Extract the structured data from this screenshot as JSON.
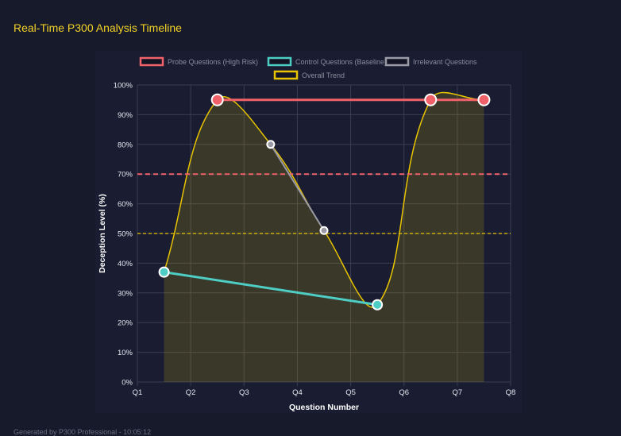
{
  "header": {
    "title": "Real-Time P300 Analysis Timeline"
  },
  "footer": {
    "text": "Generated by P300 Professional - 10:05:12"
  },
  "chart_data": {
    "type": "line",
    "xlabel": "Question Number",
    "ylabel": "Deception Level (%)",
    "xticks": [
      1,
      2,
      3,
      4,
      5,
      6,
      7,
      8
    ],
    "xtick_labels": [
      "Q1",
      "Q2",
      "Q3",
      "Q4",
      "Q5",
      "Q6",
      "Q7",
      "Q8"
    ],
    "xlim": [
      1,
      8
    ],
    "ylim": [
      0,
      100
    ],
    "yticks": [
      0,
      10,
      20,
      30,
      40,
      50,
      60,
      70,
      80,
      90,
      100
    ],
    "ytick_labels": [
      "0%",
      "10%",
      "20%",
      "30%",
      "40%",
      "50%",
      "60%",
      "70%",
      "80%",
      "90%",
      "100%"
    ],
    "grid": true,
    "legend_position": "top",
    "series": [
      {
        "name": "Probe Questions (High Risk)",
        "color": "#f0616a",
        "x": [
          2.5,
          6.5,
          7.5
        ],
        "y": [
          95,
          95,
          95
        ]
      },
      {
        "name": "Control Questions (Baseline)",
        "color": "#4ecdc4",
        "x": [
          1.5,
          5.5
        ],
        "y": [
          37,
          26
        ]
      },
      {
        "name": "Irrelevant Questions",
        "color": "#9a9aa6",
        "x": [
          3.5,
          4.5
        ],
        "y": [
          80,
          51
        ]
      },
      {
        "name": "Overall Trend",
        "color": "#e8c400",
        "x": [
          1.5,
          2.5,
          3.5,
          4.5,
          5.5,
          6.5,
          7.5
        ],
        "y": [
          37,
          95,
          80,
          51,
          26,
          95,
          95
        ],
        "smooth": true,
        "fill": true
      }
    ],
    "reference_lines": [
      {
        "y": 70,
        "color": "#f0616a",
        "style": "dashed"
      },
      {
        "y": 50,
        "color": "#e8c400",
        "style": "dashed"
      }
    ]
  }
}
